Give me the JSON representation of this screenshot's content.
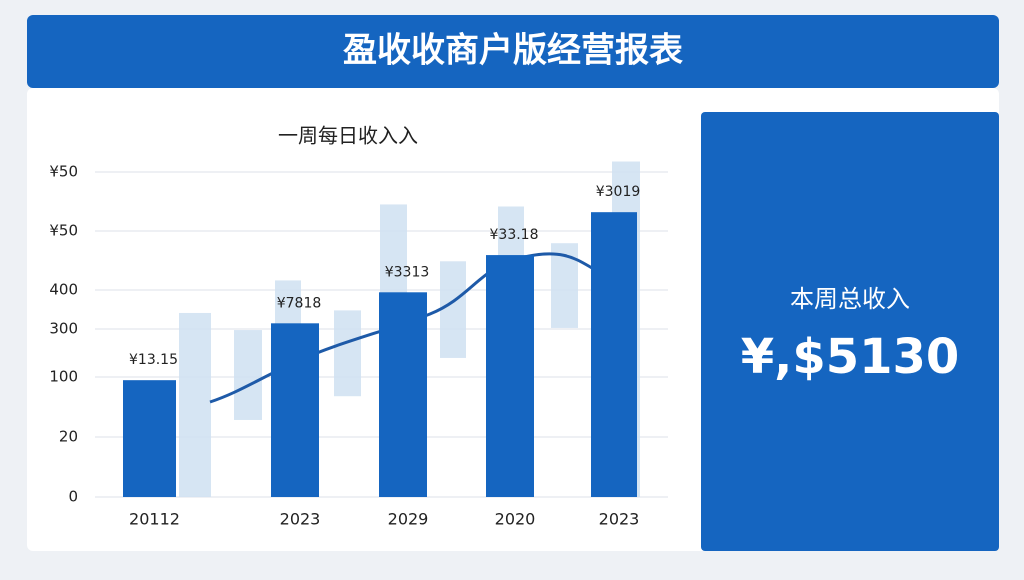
{
  "header": {
    "title": "盈收收商户版经营报表"
  },
  "chart_data": {
    "type": "bar",
    "title": "一周每日收入入",
    "categories": [
      "20112",
      "2023",
      "2029",
      "2020",
      "2023"
    ],
    "values": [
      226,
      336,
      396,
      468,
      551
    ],
    "color": "#1565c0",
    "annotations": [
      "¥13.15",
      "¥7818",
      "¥3313",
      "¥33.18",
      "¥3019"
    ],
    "y_labels": [
      "¥50",
      "¥50",
      "400",
      "300",
      "100",
      "20",
      "0"
    ],
    "ylim": [
      0,
      650
    ],
    "grid": true,
    "ranges": {
      "color": "#cfe0f1",
      "low": [
        0,
        149,
        0,
        195,
        0,
        269,
        0,
        327,
        0
      ],
      "high": [
        356,
        323,
        419,
        361,
        566,
        456,
        562,
        491,
        649
      ]
    }
  },
  "kpi": {
    "label": "本周总收入",
    "value": "¥,$5130"
  }
}
